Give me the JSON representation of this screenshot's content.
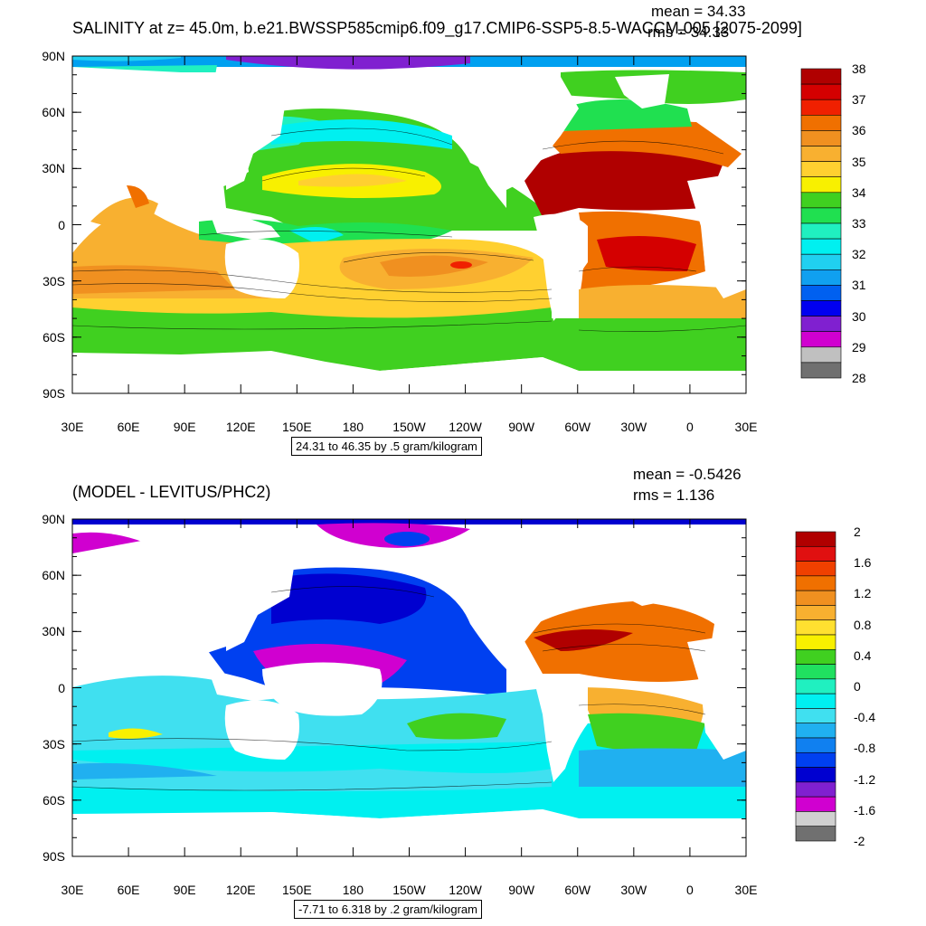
{
  "panel1": {
    "title": "SALINITY at z=  45.0m, b.e21.BWSSP585cmip6.f09_g17.CMIP6-SSP5-8.5-WACCM.005 [2075-2099]",
    "mean_text": "mean = 34.33",
    "rms_text": "rms = 34.33",
    "footer": "24.31 to 46.35 by .5 gram/kilogram",
    "colorbar": {
      "labels": [
        "38",
        "37",
        "36",
        "35",
        "34",
        "33",
        "32",
        "31",
        "30",
        "29",
        "28"
      ],
      "colors": [
        "#b00000",
        "#d40000",
        "#f02000",
        "#f07000",
        "#f09020",
        "#f8b030",
        "#ffd030",
        "#f8f000",
        "#40d020",
        "#20e050",
        "#20f0c0",
        "#00f0f0",
        "#20d0f0",
        "#10a0f0",
        "#0060f0",
        "#0000f0",
        "#8020d0",
        "#d000d0",
        "#c0c0c0",
        "#707070"
      ]
    }
  },
  "panel2": {
    "title": "(MODEL - LEVITUS/PHC2)",
    "mean_text": "mean = -0.5426",
    "rms_text": "rms = 1.136",
    "footer": "-7.71 to 6.318 by .2 gram/kilogram",
    "colorbar": {
      "labels": [
        "2",
        "1.6",
        "1.2",
        "0.8",
        "0.4",
        "0",
        "-0.4",
        "-0.8",
        "-1.2",
        "-1.6",
        "-2"
      ],
      "colors": [
        "#b00000",
        "#e01010",
        "#f04000",
        "#f07000",
        "#f09020",
        "#f8b030",
        "#ffe030",
        "#f8f000",
        "#40d020",
        "#20e060",
        "#20f0c0",
        "#00f0f0",
        "#40e0f0",
        "#20b0f0",
        "#1080f0",
        "#0040f0",
        "#0000d0",
        "#8020d0",
        "#d000d0",
        "#d0d0d0",
        "#707070"
      ]
    }
  },
  "axes": {
    "lat_labels": [
      "90N",
      "60N",
      "30N",
      "0",
      "30S",
      "60S",
      "90S"
    ],
    "lon_labels": [
      "30E",
      "60E",
      "90E",
      "120E",
      "150E",
      "180",
      "150W",
      "120W",
      "90W",
      "60W",
      "30W",
      "0",
      "30E"
    ]
  }
}
